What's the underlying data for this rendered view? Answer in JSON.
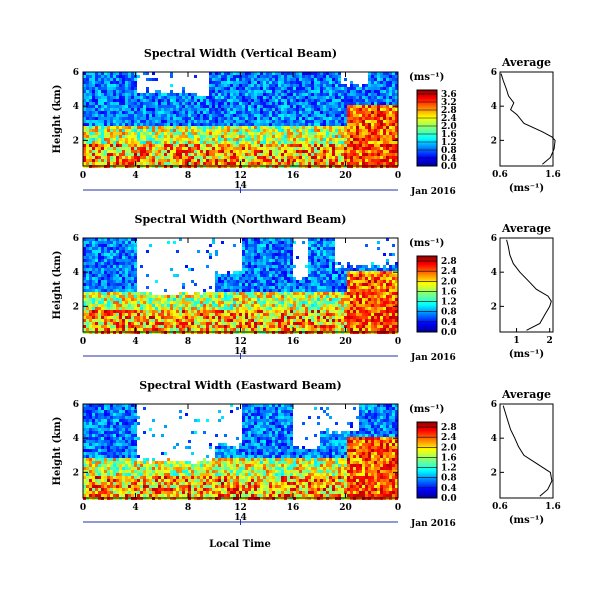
{
  "figure": {
    "bottom_label": "Local Time",
    "colorbar_unit": "(ms⁻¹)",
    "average_xlabel": "(ms⁻¹)"
  },
  "chart_data": [
    {
      "type": "heatmap",
      "title": "Spectral Width (Vertical Beam)",
      "ylabel": "Height (km)",
      "xlabel": "",
      "x_ticks": [
        "0",
        "4",
        "8",
        "12",
        "16",
        "20",
        "0"
      ],
      "y_ticks": [
        "2",
        "4",
        "6"
      ],
      "xlim": [
        0,
        24
      ],
      "ylim": [
        0.5,
        6
      ],
      "date_marker": "14",
      "date_label": "Jan 2016",
      "colorbar_ticks": [
        "0.0",
        "0.4",
        "0.8",
        "1.2",
        "1.6",
        "2.0",
        "2.4",
        "2.8",
        "3.2",
        "3.6"
      ],
      "colorbar_range": [
        0,
        3.8
      ],
      "average": {
        "title": "Average",
        "x_ticks": [
          "0.6",
          "1.6"
        ],
        "xlim": [
          0.6,
          1.6
        ],
        "y_ticks": [
          "2",
          "4",
          "6"
        ],
        "heights_km": [
          0.6,
          1.0,
          1.5,
          2.0,
          2.2,
          2.5,
          3.0,
          3.5,
          3.8,
          4.2,
          4.6,
          5.0,
          5.5,
          5.9
        ],
        "values": [
          1.4,
          1.55,
          1.62,
          1.64,
          1.58,
          1.4,
          1.05,
          0.92,
          0.8,
          0.86,
          0.76,
          0.72,
          0.66,
          0.62
        ]
      }
    },
    {
      "type": "heatmap",
      "title": "Spectral Width (Northward Beam)",
      "ylabel": "Height (km)",
      "xlabel": "",
      "x_ticks": [
        "0",
        "4",
        "8",
        "12",
        "16",
        "20",
        "0"
      ],
      "y_ticks": [
        "2",
        "4",
        "6"
      ],
      "xlim": [
        0,
        24
      ],
      "ylim": [
        0.5,
        6
      ],
      "date_marker": "14",
      "date_label": "Jan 2016",
      "colorbar_ticks": [
        "0.0",
        "0.4",
        "0.8",
        "1.2",
        "1.6",
        "2.0",
        "2.4",
        "2.8"
      ],
      "colorbar_range": [
        0,
        3.0
      ],
      "average": {
        "title": "Average",
        "x_ticks": [
          "1",
          "2"
        ],
        "xlim": [
          0.5,
          2.1
        ],
        "y_ticks": [
          "2",
          "4",
          "6"
        ],
        "heights_km": [
          0.6,
          1.0,
          1.5,
          2.0,
          2.3,
          2.6,
          3.0,
          3.5,
          4.0,
          4.5,
          5.0,
          5.5,
          5.9
        ],
        "values": [
          1.3,
          1.7,
          1.85,
          2.0,
          2.05,
          1.95,
          1.6,
          1.35,
          1.1,
          0.9,
          0.8,
          0.75,
          0.7
        ]
      }
    },
    {
      "type": "heatmap",
      "title": "Spectral Width (Eastward Beam)",
      "ylabel": "Height (km)",
      "xlabel": "Local Time",
      "x_ticks": [
        "0",
        "4",
        "8",
        "12",
        "16",
        "20",
        "0"
      ],
      "y_ticks": [
        "2",
        "4",
        "6"
      ],
      "xlim": [
        0,
        24
      ],
      "ylim": [
        0.5,
        6
      ],
      "date_marker": "14",
      "date_label": "Jan 2016",
      "colorbar_ticks": [
        "0.0",
        "0.4",
        "0.8",
        "1.2",
        "1.6",
        "2.0",
        "2.4",
        "2.8"
      ],
      "colorbar_range": [
        0,
        3.0
      ],
      "average": {
        "title": "Average",
        "x_ticks": [
          "0.6",
          "1.6"
        ],
        "xlim": [
          0.6,
          1.6
        ],
        "y_ticks": [
          "2",
          "4",
          "6"
        ],
        "heights_km": [
          0.6,
          1.0,
          1.5,
          2.0,
          2.5,
          3.0,
          3.5,
          4.0,
          4.5,
          5.0,
          5.5,
          5.9
        ],
        "values": [
          1.35,
          1.5,
          1.58,
          1.55,
          1.3,
          1.05,
          0.95,
          0.88,
          0.8,
          0.75,
          0.7,
          0.66
        ]
      }
    }
  ]
}
